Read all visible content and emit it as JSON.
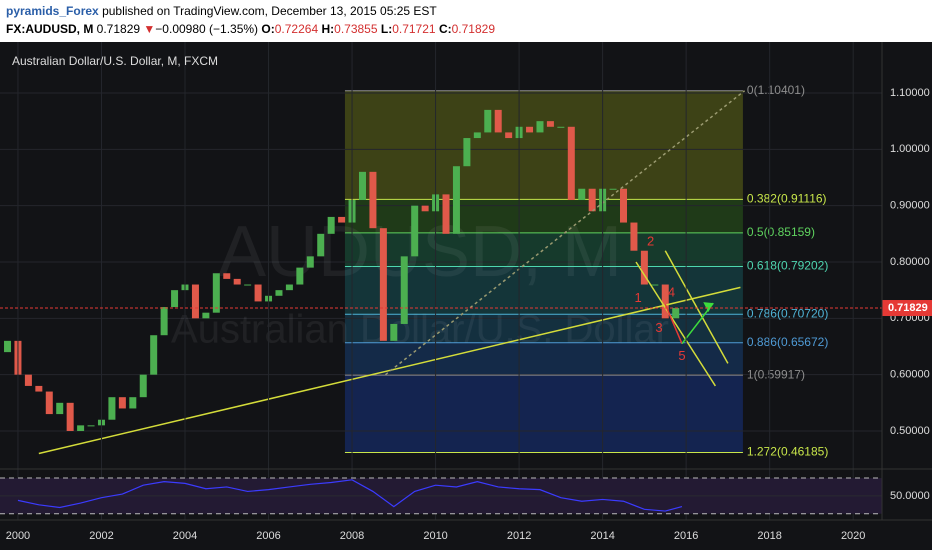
{
  "header": {
    "publisher": "pyramids_Forex",
    "published": "published on TradingView.com, December 13, 2015 05:25 EST",
    "symbol": "FX:AUDUSD, M",
    "last": "0.71829",
    "change": "−0.00980 (−1.35%)",
    "ohlc": [
      {
        "k": "O:",
        "v": "0.72264"
      },
      {
        "k": "H:",
        "v": "0.73855"
      },
      {
        "k": "L:",
        "v": "0.71721"
      },
      {
        "k": "C:",
        "v": "0.71829"
      }
    ]
  },
  "chart_data": {
    "type": "candlestick",
    "title": "Australian Dollar/U.S. Dollar, M, FXCM",
    "watermark": [
      "AUDUSD, M",
      "Australian Dollar/U.S. Dollar"
    ],
    "xlim": [
      1999.57,
      2020.69
    ],
    "xticks": [
      2000,
      2002,
      2004,
      2006,
      2008,
      2010,
      2012,
      2014,
      2016,
      2018,
      2020
    ],
    "ylim": [
      0.4343,
      1.1905
    ],
    "yticks": [
      {
        "value": 1.1,
        "label": "1.10000"
      },
      {
        "value": 1.0,
        "label": "1.00000"
      },
      {
        "value": 0.9,
        "label": "0.90000"
      },
      {
        "value": 0.8,
        "label": "0.80000"
      },
      {
        "value": 0.7,
        "label": "0.70000"
      },
      {
        "value": 0.6,
        "label": "0.60000"
      },
      {
        "value": 0.5,
        "label": "0.50000"
      }
    ],
    "up_color": "#4caf50",
    "down_color": "#e0594a",
    "first_open": 0.64,
    "series": [
      {
        "name": "AUDUSD",
        "x": [
          1999.75,
          2000,
          2000.25,
          2000.5,
          2000.75,
          2001,
          2001.25,
          2001.5,
          2001.75,
          2002,
          2002.25,
          2002.5,
          2002.75,
          2003,
          2003.25,
          2003.5,
          2003.75,
          2004,
          2004.25,
          2004.5,
          2004.75,
          2005,
          2005.25,
          2005.5,
          2005.75,
          2006,
          2006.25,
          2006.5,
          2006.75,
          2007,
          2007.25,
          2007.5,
          2007.75,
          2008,
          2008.25,
          2008.5,
          2008.75,
          2009,
          2009.25,
          2009.5,
          2009.75,
          2010,
          2010.25,
          2010.5,
          2010.75,
          2011,
          2011.25,
          2011.5,
          2011.75,
          2012,
          2012.25,
          2012.5,
          2012.75,
          2013,
          2013.25,
          2013.5,
          2013.75,
          2014,
          2014.25,
          2014.5,
          2014.75,
          2015,
          2015.25,
          2015.5,
          2015.75
        ],
        "values": [
          0.66,
          0.6,
          0.58,
          0.57,
          0.53,
          0.55,
          0.5,
          0.51,
          0.51,
          0.52,
          0.56,
          0.54,
          0.56,
          0.6,
          0.67,
          0.72,
          0.75,
          0.76,
          0.7,
          0.71,
          0.78,
          0.77,
          0.76,
          0.76,
          0.73,
          0.74,
          0.75,
          0.76,
          0.79,
          0.81,
          0.85,
          0.88,
          0.87,
          0.91,
          0.96,
          0.86,
          0.66,
          0.69,
          0.81,
          0.9,
          0.89,
          0.92,
          0.85,
          0.97,
          1.02,
          1.03,
          1.07,
          1.03,
          1.02,
          1.04,
          1.03,
          1.05,
          1.04,
          1.04,
          0.91,
          0.93,
          0.89,
          0.93,
          0.93,
          0.87,
          0.82,
          0.76,
          0.76,
          0.7,
          0.71829
        ]
      }
    ],
    "last_price": 0.71829,
    "last_color": "#e53935",
    "fib": {
      "x": [
        2007.83,
        2017.36
      ],
      "levels": [
        {
          "value": 1.10401,
          "label": "0(1.10401)",
          "color": "#8d8d8d"
        },
        {
          "value": 0.91116,
          "label": "0.382(0.91116)",
          "color": "#c8e64a"
        },
        {
          "value": 0.85159,
          "label": "0.5(0.85159)",
          "color": "#5fd35f"
        },
        {
          "value": 0.79202,
          "label": "0.618(0.79202)",
          "color": "#4fd6b0"
        },
        {
          "value": 0.7072,
          "label": "0.786(0.70720)",
          "color": "#4fb3d6"
        },
        {
          "value": 0.65672,
          "label": "0.886(0.65672)",
          "color": "#4f9bd6"
        },
        {
          "value": 0.59917,
          "label": "1(0.59917)",
          "color": "#8d8d8d"
        },
        {
          "value": 0.46185,
          "label": "1.272(0.46185)",
          "color": "#c8e64a"
        }
      ],
      "fills": [
        "#3d4216",
        "#1f3a18",
        "#163a2c",
        "#143539",
        "#14303f",
        "#142a48",
        "#142450"
      ]
    },
    "lines": [
      {
        "x": [
          2000.5,
          2017.3
        ],
        "y": [
          0.46,
          0.755
        ],
        "color": "#d4dc3a"
      },
      {
        "x": [
          2008.8,
          2017.4
        ],
        "y": [
          0.6,
          1.104
        ],
        "color": "#9a9a70",
        "dash": true
      },
      {
        "x": [
          2014.8,
          2016.7
        ],
        "y": [
          0.8,
          0.58
        ],
        "color": "#d4dc3a"
      },
      {
        "x": [
          2015.5,
          2017
        ],
        "y": [
          0.82,
          0.62
        ],
        "color": "#d4dc3a"
      },
      {
        "x": [
          2015.5,
          2015.9
        ],
        "y": [
          0.725,
          0.655
        ],
        "color": "#e53935"
      },
      {
        "x": [
          2015.9,
          2016.65
        ],
        "y": [
          0.655,
          0.727
        ],
        "color": "#3ddc3d"
      }
    ],
    "annotations": [
      {
        "text": "1",
        "x": 2014.85,
        "y": 0.735,
        "color": "#e53935"
      },
      {
        "text": "2",
        "x": 2015.15,
        "y": 0.835,
        "color": "#e53935"
      },
      {
        "text": "3",
        "x": 2015.35,
        "y": 0.682,
        "color": "#e53935"
      },
      {
        "text": "4",
        "x": 2015.65,
        "y": 0.745,
        "color": "#e53935"
      },
      {
        "text": "5",
        "x": 2015.9,
        "y": 0.632,
        "color": "#e53935"
      }
    ],
    "rsi": {
      "ylim": [
        23,
        79
      ],
      "yticks": [
        {
          "value": 50,
          "label": "50.0000"
        }
      ],
      "levels": [
        70,
        30
      ],
      "color": "#3b3bff",
      "x": [
        2000,
        2000.5,
        2001,
        2001.5,
        2002,
        2002.5,
        2003,
        2003.5,
        2004,
        2004.5,
        2005,
        2005.5,
        2006,
        2006.5,
        2007,
        2007.5,
        2008,
        2008.5,
        2009,
        2009.5,
        2010,
        2010.5,
        2011,
        2011.5,
        2012,
        2012.5,
        2013,
        2013.5,
        2014,
        2014.5,
        2015,
        2015.5,
        2015.9
      ],
      "values": [
        45,
        40,
        37,
        42,
        48,
        52,
        62,
        66,
        64,
        58,
        60,
        55,
        57,
        60,
        63,
        65,
        68,
        55,
        38,
        55,
        62,
        60,
        66,
        60,
        58,
        57,
        48,
        44,
        46,
        44,
        35,
        33,
        38
      ]
    }
  }
}
